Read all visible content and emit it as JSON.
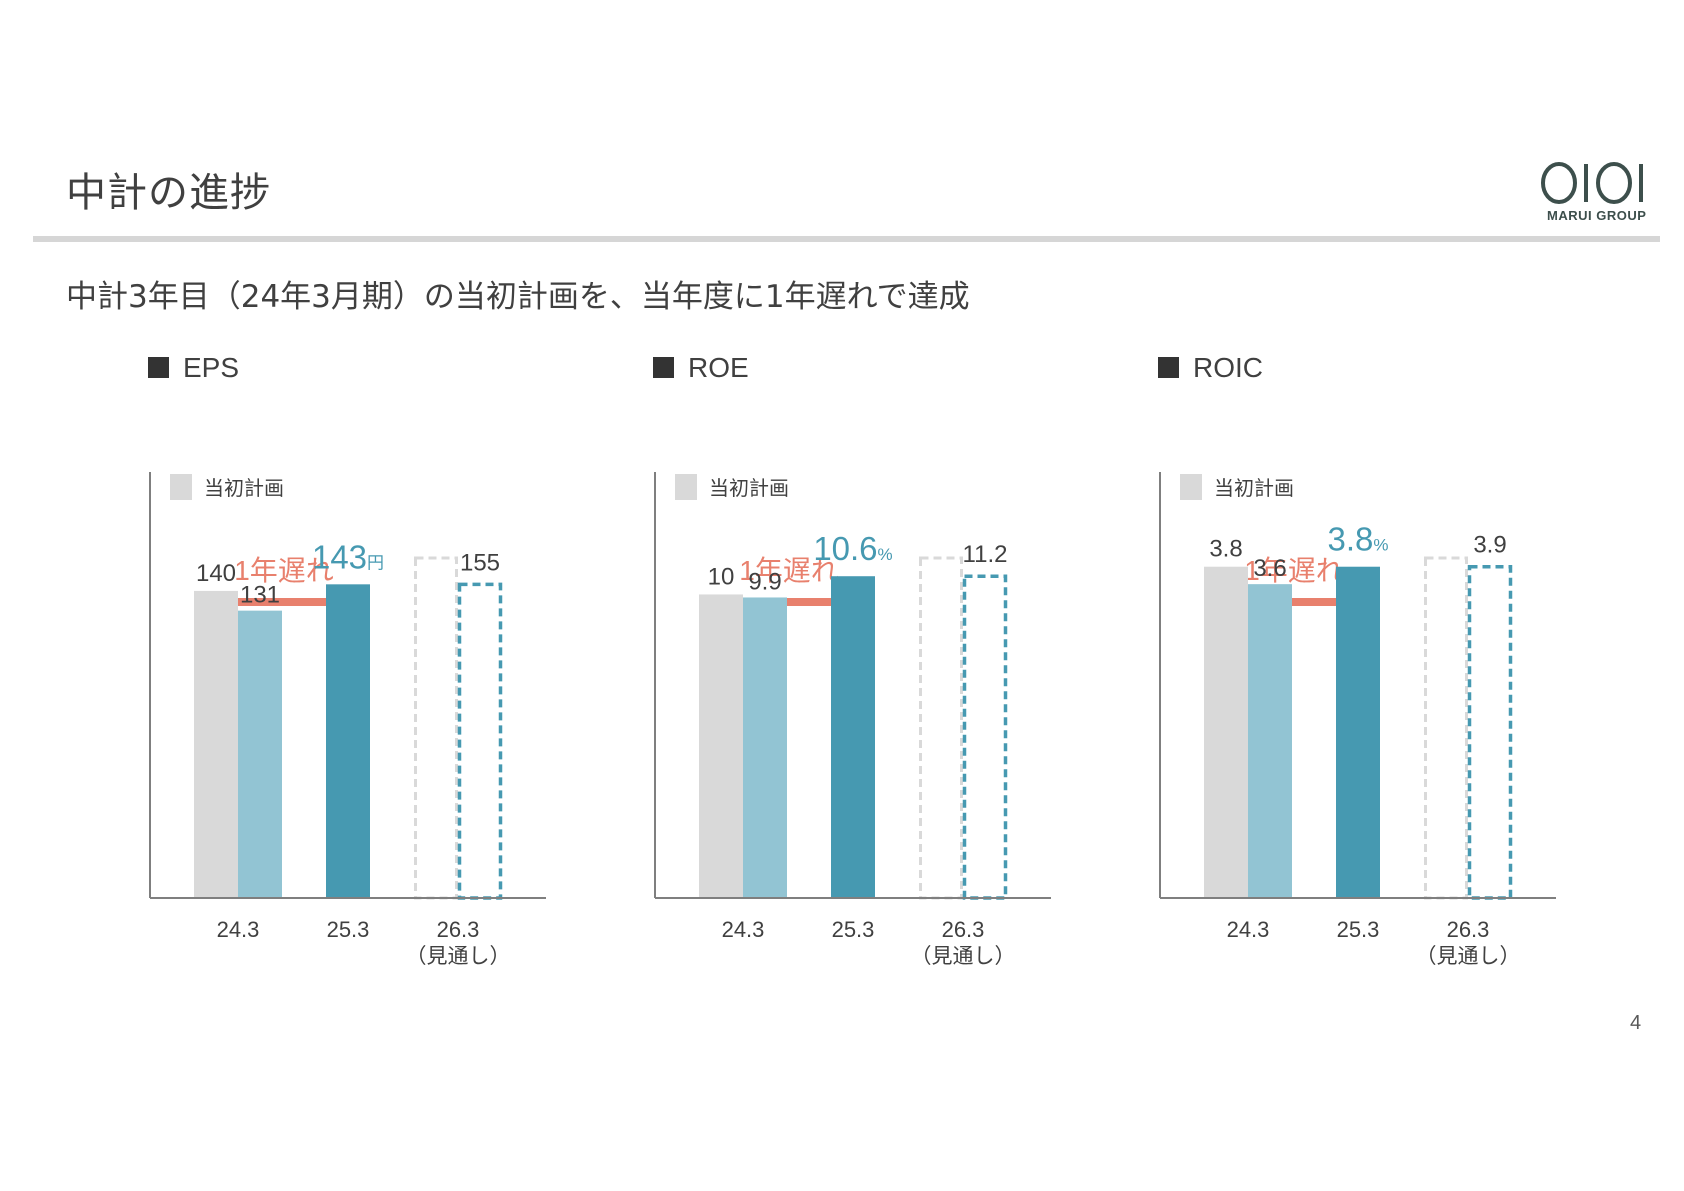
{
  "header": {
    "title": "中計の進捗",
    "logo_text": "MARUI GROUP",
    "logo_mark": "OIOI"
  },
  "subtitle": "中計3年目（24年3月期）の当初計画を、当年度に1年遅れで達成",
  "legend_label": "当初計画",
  "delay_label": "1年遅れ",
  "page_number": "4",
  "colors": {
    "plan": "#d9d9d9",
    "actual_light": "#92c4d3",
    "actual": "#4699b1",
    "arrow": "#e8806d",
    "text": "#404040"
  },
  "chart_data": [
    {
      "type": "bar",
      "title": "EPS",
      "categories": [
        "24.3",
        "25.3",
        "26.3"
      ],
      "category_sublabels": [
        "",
        "",
        "（見通し）"
      ],
      "series": [
        {
          "name": "当初計画",
          "values": [
            140,
            null,
            155
          ]
        },
        {
          "values": [
            131,
            143,
            143
          ]
        }
      ],
      "value_labels": {
        "plan": [
          "140",
          null,
          "155"
        ],
        "actual": [
          "131",
          "143",
          null
        ]
      },
      "highlight_unit": "円",
      "forecast_category": "26.3",
      "ylim": [
        0,
        155
      ]
    },
    {
      "type": "bar",
      "title": "ROE",
      "categories": [
        "24.3",
        "25.3",
        "26.3"
      ],
      "category_sublabels": [
        "",
        "",
        "（見通し）"
      ],
      "series": [
        {
          "name": "当初計画",
          "values": [
            10,
            null,
            11.2
          ]
        },
        {
          "values": [
            9.9,
            10.6,
            10.6
          ]
        }
      ],
      "value_labels": {
        "plan": [
          "10",
          null,
          "11.2"
        ],
        "actual": [
          "9.9",
          "10.6",
          null
        ]
      },
      "highlight_unit": "%",
      "forecast_category": "26.3",
      "ylim": [
        0,
        11.2
      ]
    },
    {
      "type": "bar",
      "title": "ROIC",
      "categories": [
        "24.3",
        "25.3",
        "26.3"
      ],
      "category_sublabels": [
        "",
        "",
        "（見通し）"
      ],
      "series": [
        {
          "name": "当初計画",
          "values": [
            3.8,
            null,
            3.9
          ]
        },
        {
          "values": [
            3.6,
            3.8,
            3.8
          ]
        }
      ],
      "value_labels": {
        "plan": [
          "3.8",
          null,
          "3.9"
        ],
        "actual": [
          "3.6",
          "3.8",
          null
        ]
      },
      "highlight_unit": "%",
      "forecast_category": "26.3",
      "ylim": [
        0,
        3.9
      ]
    }
  ]
}
